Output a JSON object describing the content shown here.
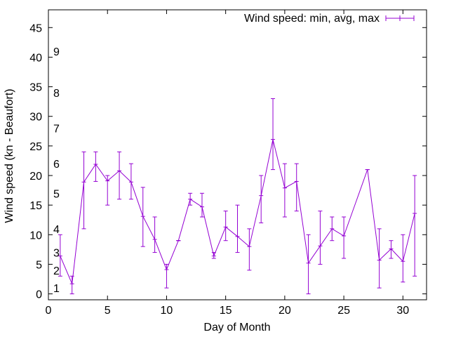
{
  "chart_data": {
    "type": "line",
    "title": "",
    "xlabel": "Day of Month",
    "ylabel": "Wind speed (kn - Beaufort)",
    "xlim": [
      0,
      32
    ],
    "ylim": [
      -1,
      48
    ],
    "xticks": [
      0,
      5,
      10,
      15,
      20,
      25,
      30
    ],
    "yticks": [
      0,
      5,
      10,
      15,
      20,
      25,
      30,
      35,
      40,
      45
    ],
    "beaufort_labels": [
      {
        "label": "1",
        "y": 1
      },
      {
        "label": "2",
        "y": 4
      },
      {
        "label": "3",
        "y": 7
      },
      {
        "label": "4",
        "y": 11
      },
      {
        "label": "5",
        "y": 17
      },
      {
        "label": "6",
        "y": 22
      },
      {
        "label": "7",
        "y": 28
      },
      {
        "label": "8",
        "y": 34
      },
      {
        "label": "9",
        "y": 41
      }
    ],
    "legend": "top-right",
    "grid": false,
    "color": "#9400d3",
    "series": [
      {
        "name": "Wind speed: min, avg, max",
        "x": [
          1,
          2,
          3,
          4,
          5,
          6,
          7,
          8,
          9,
          10,
          11,
          12,
          13,
          14,
          15,
          16,
          17,
          18,
          19,
          20,
          21,
          22,
          23,
          24,
          25,
          27,
          28,
          29,
          30,
          31
        ],
        "avg": [
          6.4,
          1.7,
          18.9,
          21.9,
          19.1,
          20.8,
          18.9,
          13.1,
          9.2,
          4.1,
          9.0,
          16.0,
          14.7,
          6.4,
          11.3,
          9.7,
          8.0,
          16.6,
          26.1,
          17.9,
          19.0,
          5.2,
          8.1,
          11.0,
          9.8,
          21.0,
          5.7,
          7.6,
          5.5,
          13.6
        ],
        "min": [
          3.0,
          0.0,
          11.0,
          19.0,
          15.0,
          16.0,
          16.0,
          8.0,
          7.0,
          1.0,
          9.0,
          15.0,
          13.0,
          6.0,
          9.0,
          7.0,
          4.0,
          12.0,
          21.0,
          13.0,
          14.0,
          0.0,
          5.0,
          9.0,
          6.0,
          21.0,
          1.0,
          6.0,
          2.0,
          3.0
        ],
        "max": [
          10.0,
          3.0,
          24.0,
          24.0,
          20.0,
          24.0,
          22.0,
          18.0,
          13.0,
          5.0,
          9.0,
          17.0,
          17.0,
          7.0,
          14.0,
          15.0,
          11.0,
          20.0,
          33.0,
          22.0,
          22.0,
          10.0,
          14.0,
          13.0,
          13.0,
          21.0,
          11.0,
          9.0,
          10.0,
          20.0
        ]
      }
    ]
  }
}
